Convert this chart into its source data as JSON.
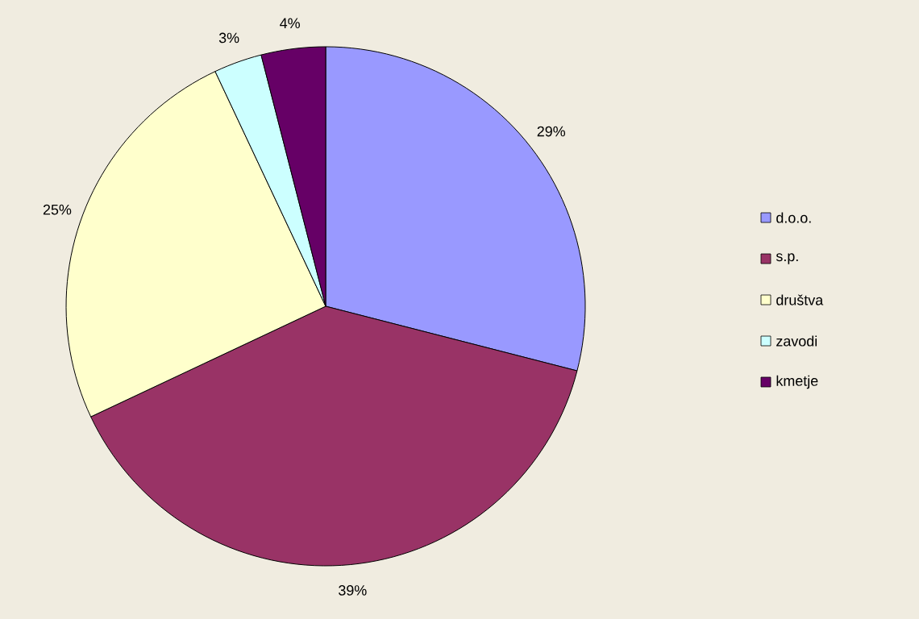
{
  "chart_data": {
    "type": "pie",
    "categories": [
      "d.o.o.",
      "s.p.",
      "društva",
      "zavodi",
      "kmetje"
    ],
    "values": [
      29,
      39,
      25,
      3,
      4
    ],
    "colors": [
      "#9999ff",
      "#993366",
      "#ffffcc",
      "#ccffff",
      "#660066"
    ],
    "value_labels": [
      "29%",
      "39%",
      "25%",
      "3%",
      "4%"
    ],
    "legend": "right"
  }
}
